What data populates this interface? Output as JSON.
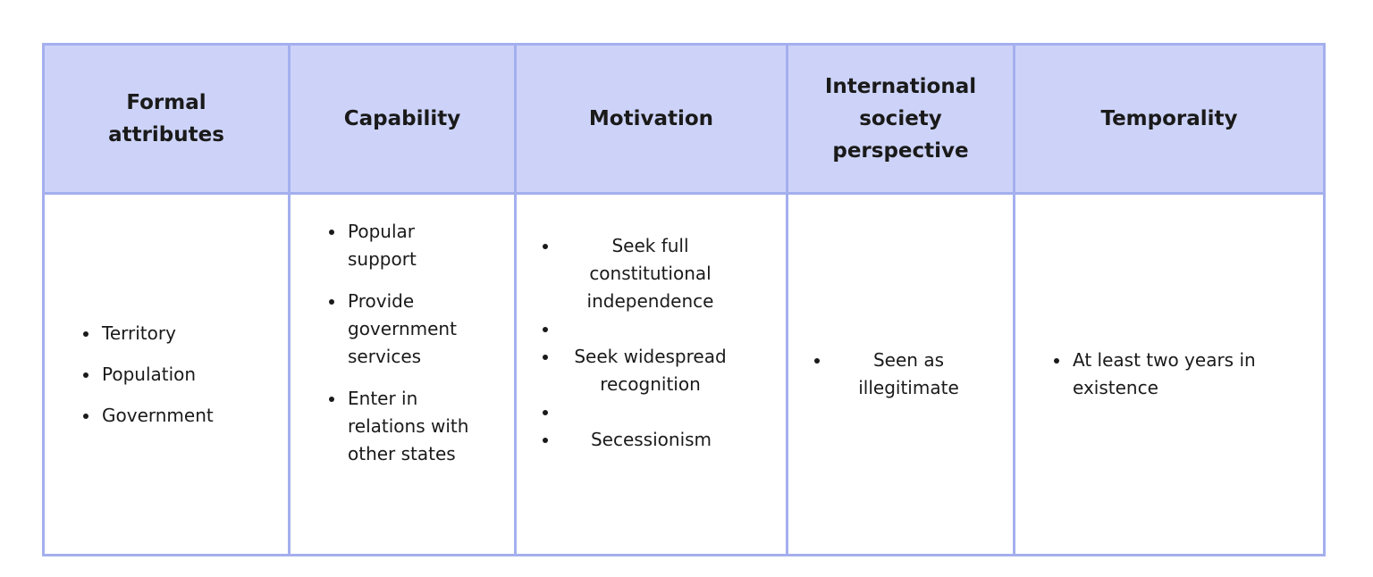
{
  "table": {
    "headers": [
      "Formal attributes",
      "Capability",
      "Motivation",
      "International society perspective",
      "Temporality"
    ],
    "columns": [
      [
        "Territory",
        "Population",
        "Government"
      ],
      [
        "Popular support",
        "Provide government services",
        "Enter in relations with other states"
      ],
      [
        "Seek full constitutional independence",
        "",
        "Seek widespread recognition",
        "",
        "Secessionism"
      ],
      [
        "Seen as illegitimate"
      ],
      [
        "At least two years in existence"
      ]
    ]
  },
  "colors": {
    "header_bg": "#cdd3f8",
    "border": "#a4afee"
  }
}
